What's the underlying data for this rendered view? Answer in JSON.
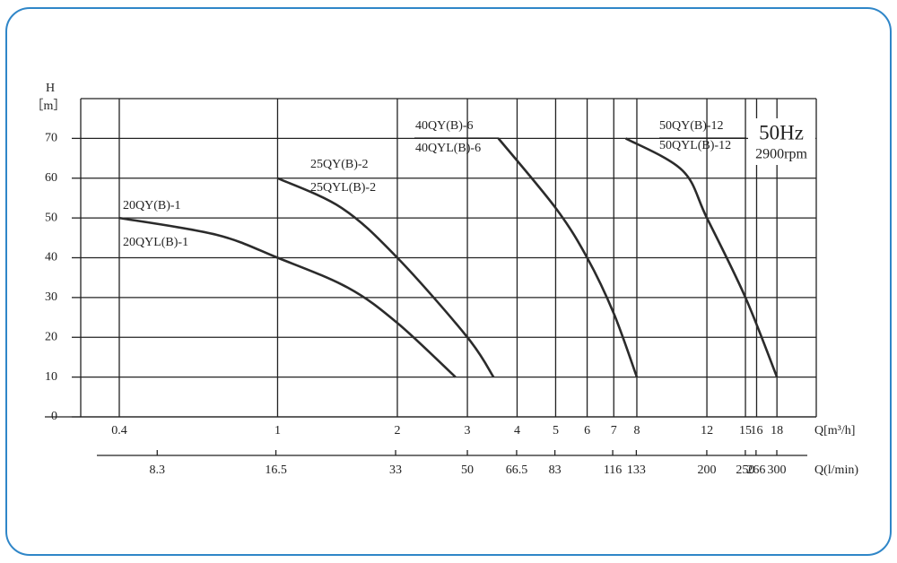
{
  "chart_data": {
    "type": "line",
    "y_label": "H",
    "y_unit": "［m］",
    "x_label": "Q[m³/h]",
    "x2_label": "Q(l/min)",
    "frequency": "50Hz",
    "speed": "2900rpm",
    "x_scale": "log",
    "grid": true,
    "xlim": [
      0.32,
      22.6
    ],
    "xticks": [
      0.4,
      1,
      2,
      3,
      4,
      5,
      6,
      7,
      8,
      12,
      15,
      16,
      18
    ],
    "x2lim": [
      5.33,
      377
    ],
    "x2ticks": [
      8.3,
      16.5,
      33,
      50,
      66.5,
      83,
      116,
      133,
      200,
      250,
      266,
      300
    ],
    "ylim": [
      0,
      80
    ],
    "yticks": [
      0,
      10,
      20,
      30,
      40,
      50,
      60,
      70
    ],
    "series": [
      {
        "labels": [
          "20QY(B)-1",
          "20QYL(B)-1"
        ],
        "color": "#2b2b2b",
        "x": [
          0.4,
          0.7,
          1,
          1.5,
          2,
          2.8
        ],
        "values": [
          50,
          45.8,
          40,
          32.5,
          23.6,
          10
        ]
      },
      {
        "labels": [
          "25QY(B)-2",
          "25QYL(B)-2"
        ],
        "color": "#2b2b2b",
        "x": [
          1,
          1.45,
          2,
          3,
          3.49
        ],
        "values": [
          60,
          52.5,
          40,
          20,
          10
        ]
      },
      {
        "labels": [
          "40QY(B)-6",
          "40QYL(B)-6"
        ],
        "color": "#2b2b2b",
        "x": [
          3.59,
          5,
          6,
          7,
          8
        ],
        "values": [
          70,
          52.5,
          40,
          26,
          10
        ]
      },
      {
        "labels": [
          "50QY(B)-12",
          "50QYL(B)-12"
        ],
        "color": "#2b2b2b",
        "x": [
          7.5,
          10.4,
          12,
          15,
          18
        ],
        "values": [
          70,
          62,
          50,
          30,
          10
        ]
      }
    ]
  }
}
